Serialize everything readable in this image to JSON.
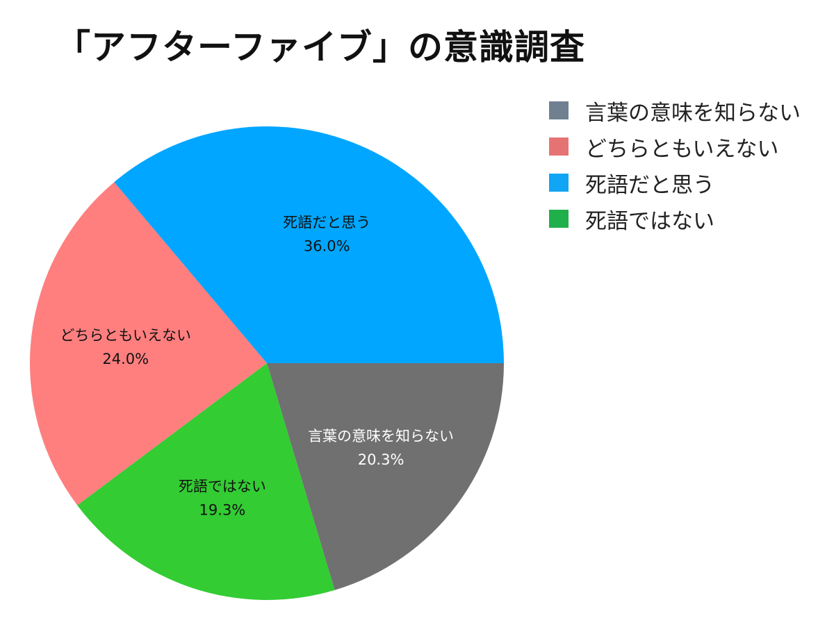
{
  "chart_data": {
    "type": "pie",
    "title": "「アフターファイブ」の意識調査",
    "legend_position": "top-right",
    "slices": [
      {
        "name": "言葉の意味を知らない",
        "value": 20.3,
        "label": "20.3%",
        "color": "#707070",
        "legend_color": "#708090",
        "label_color": "#ffffff"
      },
      {
        "name": "死語ではない",
        "value": 19.3,
        "label": "19.3%",
        "color": "#33cc33",
        "legend_color": "#1faf4b",
        "label_color": "#111111"
      },
      {
        "name": "どちらともいえない",
        "value": 24.0,
        "label": "24.0%",
        "color": "#ff7f7f",
        "legend_color": "#e57373",
        "label_color": "#111111"
      },
      {
        "name": "死語だと思う",
        "value": 36.0,
        "label": "36.0%",
        "color": "#00a6ff",
        "legend_color": "#10a5f5",
        "label_color": "#111111"
      }
    ],
    "legend": [
      {
        "name": "言葉の意味を知らない",
        "color": "#708090"
      },
      {
        "name": "どちらともいえない",
        "color": "#e57373"
      },
      {
        "name": "死語だと思う",
        "color": "#10a5f5"
      },
      {
        "name": "死語ではない",
        "color": "#1faf4b"
      }
    ]
  }
}
